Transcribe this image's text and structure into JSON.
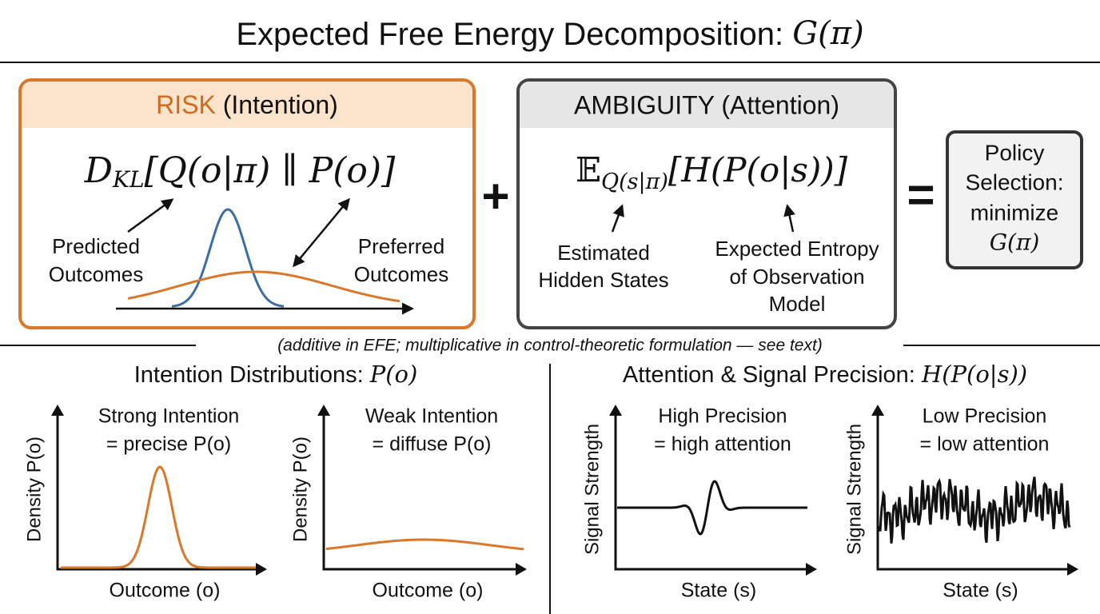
{
  "title": {
    "text": "Expected Free Energy Decomposition: ",
    "math": "G(π)"
  },
  "risk": {
    "heading": "RISK",
    "heading_note": "(Intention)",
    "formula": [
      "D",
      "KL",
      "[Q(o|π) ∥ P(o)]"
    ],
    "predicted": [
      "Predicted",
      "Outcomes"
    ],
    "preferred": [
      "Preferred",
      "Outcomes"
    ]
  },
  "plus": "+",
  "ambiguity": {
    "heading": "AMBIGUITY (Attention)",
    "formula": [
      "𝔼",
      "Q(s|π)",
      "[H(P(o|s))]"
    ],
    "estimated": [
      "Estimated",
      "Hidden States"
    ],
    "entropy": [
      "Expected Entropy",
      "of Observation",
      "Model"
    ]
  },
  "equals": "=",
  "policy": {
    "lines": [
      "Policy",
      "Selection:",
      "minimize"
    ],
    "math": "G(π)"
  },
  "note": "(additive in EFE; multiplicative in control-theoretic formulation — see text)",
  "intention": {
    "heading": "Intention Distributions: ",
    "math": "P(o)",
    "panels": [
      {
        "title": [
          "Strong Intention",
          "= precise P(o)"
        ],
        "ylabel": "Density P(o)",
        "xlabel": "Outcome (o)"
      },
      {
        "title": [
          "Weak Intention",
          "= diffuse P(o)"
        ],
        "ylabel": "Density P(o)",
        "xlabel": "Outcome (o)"
      }
    ]
  },
  "attention": {
    "heading": "Attention & Signal Precision: ",
    "math": "H(P(o|s))",
    "panels": [
      {
        "title": [
          "High Precision",
          "= high attention"
        ],
        "ylabel": "Signal Strength",
        "xlabel": "State (s)"
      },
      {
        "title": [
          "Low Precision",
          "= low attention"
        ],
        "ylabel": "Signal Strength",
        "xlabel": "State (s)"
      }
    ]
  }
}
